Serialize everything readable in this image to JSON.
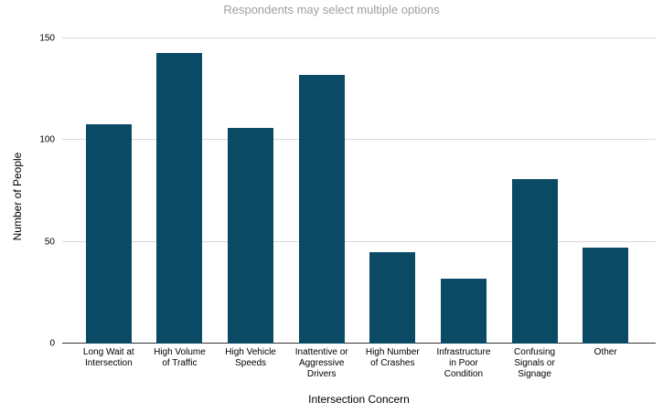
{
  "title": "Respondents may select multiple options",
  "axes": {
    "x_title": "Intersection Concern",
    "y_title": "Number of People"
  },
  "x_labels": [
    "Long Wait at\nIntersection",
    "High Volume\nof Traffic",
    "High Vehicle\nSpeeds",
    "Inattentive or\nAggressive\nDrivers",
    "High Number\nof Crashes",
    "Infrastructure\nin Poor\nCondition",
    "Confusing\nSignals or\nSignage",
    "Other"
  ],
  "chart_data": {
    "type": "bar",
    "title": "Respondents may select multiple options",
    "xlabel": "Intersection Concern",
    "ylabel": "Number of People",
    "categories": [
      "Long Wait at Intersection",
      "High Volume of Traffic",
      "High Vehicle Speeds",
      "Inattentive or Aggressive Drivers",
      "High Number of Crashes",
      "Infrastructure in Poor Condition",
      "Confusing Signals or Signage",
      "Other"
    ],
    "values": [
      108,
      143,
      106,
      132,
      45,
      32,
      81,
      47
    ],
    "ylim": [
      0,
      150
    ],
    "yticks": [
      0,
      50,
      100,
      150
    ],
    "grid": true,
    "legend": "none",
    "bar_color": "#0b4a64"
  },
  "colors": {
    "bar": "#0b4a64",
    "title": "#9e9e9e",
    "axis_text": "#000000",
    "gridline": "#d9d9d9",
    "axis_line": "#333333",
    "background": "#ffffff"
  }
}
